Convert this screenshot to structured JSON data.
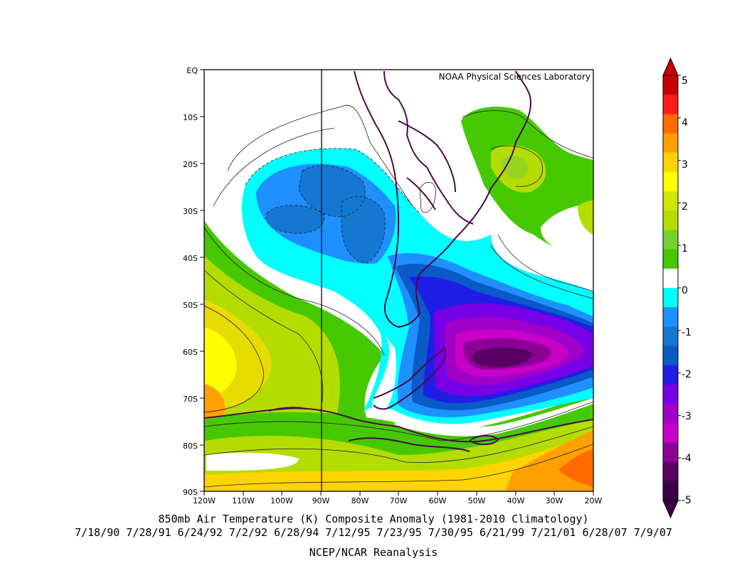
{
  "title": "850mb Air Temperature (K) Composite Anomaly (1981-2010 Climatology)",
  "dates_line": "7/18/90 7/28/91 6/24/92 7/2/92 6/28/94 7/12/95 7/23/95 7/30/95 6/21/99 7/21/01 6/28/07 7/9/07",
  "source": "NCEP/NCAR Reanalysis",
  "credit": "NOAA Physical Sciences Laboratory",
  "lat_labels": [
    "EQ",
    "10S",
    "20S",
    "30S",
    "40S",
    "50S",
    "60S",
    "70S",
    "80S",
    "90S"
  ],
  "lon_labels": [
    "120W",
    "110W",
    "100W",
    "90W",
    "80W",
    "70W",
    "60W",
    "50W",
    "40W",
    "30W",
    "20W"
  ],
  "colorbar": {
    "labels": [
      "5",
      "4",
      "3",
      "2",
      "1",
      "0",
      "-1",
      "-2",
      "-3",
      "-4",
      "-5"
    ],
    "colors": [
      "#c80000",
      "#ff1a1a",
      "#ff6a00",
      "#ff9f00",
      "#ffd400",
      "#ffff00",
      "#d2e600",
      "#b4dc00",
      "#78d030",
      "#46c800",
      "#ffffff",
      "#00ffff",
      "#1e90ff",
      "#1478d2",
      "#0a5ac8",
      "#1e1ee6",
      "#7800e6",
      "#a000c8",
      "#c800c8",
      "#8c0096",
      "#5a0064",
      "#3c0046"
    ]
  },
  "colors": {
    "white": "#ffffff",
    "cyan": "#00ffff",
    "light_blue": "#1e90ff",
    "mid_blue": "#1478d2",
    "dark_blue": "#0a5ac8",
    "blue": "#1e1ee6",
    "violet": "#7800e6",
    "purple": "#a000c8",
    "magenta": "#c800c8",
    "dark_purple": "#8c0096",
    "deep_purple": "#5a0064",
    "green": "#46c800",
    "yellow_green": "#b4dc00",
    "light_green": "#78d030",
    "yellow": "#ffff00",
    "gold": "#ffd400",
    "orange": "#ff9f00",
    "dark_orange": "#ff6a00",
    "coast": "#4a0a4a"
  }
}
